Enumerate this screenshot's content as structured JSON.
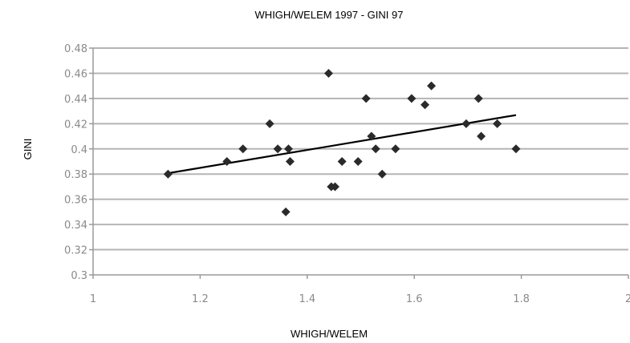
{
  "chart_data": {
    "type": "scatter",
    "title": "WHIGH/WELEM 1997 - GINI 97",
    "xlabel": "WHIGH/WELEM",
    "ylabel": "GINI",
    "xlim": [
      1,
      2
    ],
    "ylim": [
      0.3,
      0.48
    ],
    "x_ticks": [
      "1",
      "1.2",
      "1.4",
      "1.6",
      "1.8",
      "2"
    ],
    "y_ticks": [
      "0.3",
      "0.32",
      "0.34",
      "0.36",
      "0.38",
      "0.4",
      "0.42",
      "0.44",
      "0.46",
      "0.48"
    ],
    "x_tick_values": [
      1,
      1.2,
      1.4,
      1.6,
      1.8,
      2
    ],
    "y_tick_values": [
      0.3,
      0.32,
      0.34,
      0.36,
      0.38,
      0.4,
      0.42,
      0.44,
      0.46,
      0.48
    ],
    "grid": true,
    "points": [
      {
        "x": 1.14,
        "y": 0.38
      },
      {
        "x": 1.25,
        "y": 0.39
      },
      {
        "x": 1.28,
        "y": 0.4
      },
      {
        "x": 1.33,
        "y": 0.42
      },
      {
        "x": 1.345,
        "y": 0.4
      },
      {
        "x": 1.36,
        "y": 0.35
      },
      {
        "x": 1.365,
        "y": 0.4
      },
      {
        "x": 1.368,
        "y": 0.39
      },
      {
        "x": 1.44,
        "y": 0.46
      },
      {
        "x": 1.445,
        "y": 0.37
      },
      {
        "x": 1.452,
        "y": 0.37
      },
      {
        "x": 1.465,
        "y": 0.39
      },
      {
        "x": 1.495,
        "y": 0.39
      },
      {
        "x": 1.51,
        "y": 0.44
      },
      {
        "x": 1.52,
        "y": 0.41
      },
      {
        "x": 1.528,
        "y": 0.4
      },
      {
        "x": 1.54,
        "y": 0.38
      },
      {
        "x": 1.565,
        "y": 0.4
      },
      {
        "x": 1.595,
        "y": 0.44
      },
      {
        "x": 1.62,
        "y": 0.435
      },
      {
        "x": 1.632,
        "y": 0.45
      },
      {
        "x": 1.697,
        "y": 0.42
      },
      {
        "x": 1.72,
        "y": 0.44
      },
      {
        "x": 1.725,
        "y": 0.41
      },
      {
        "x": 1.755,
        "y": 0.42
      },
      {
        "x": 1.79,
        "y": 0.4
      }
    ],
    "trendline": {
      "x": [
        1.14,
        1.79
      ],
      "y": [
        0.3807,
        0.4268
      ]
    },
    "colors": {
      "points": "#2a2a2a",
      "trend": "#000000",
      "grid": "#b5b5b5",
      "ticks": "#8a8a8a"
    }
  }
}
